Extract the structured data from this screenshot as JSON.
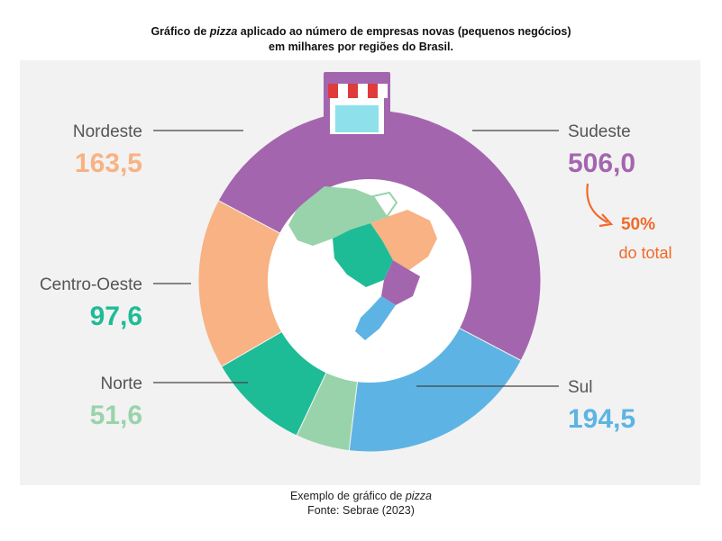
{
  "title": {
    "part1": "Gráfico de ",
    "italic": "pizza",
    "part2": " aplicado ao número de empresas novas (pequenos negócios)",
    "line2": "em milhares por regiões do Brasil."
  },
  "caption": {
    "part1": "Exemplo de gráfico de ",
    "italic": "pizza",
    "line2": "Fonte: Sebrae (2023)"
  },
  "annotation": {
    "percent": "50%",
    "text": "do total"
  },
  "colors": {
    "sudeste": "#a366ae",
    "sul": "#5db4e4",
    "norte": "#99d3ab",
    "centro_oeste": "#1ebc96",
    "nordeste": "#f8b283",
    "annotation": "#f06a2a",
    "label": "#555555",
    "panel": "#f2f2f2"
  },
  "icons": [
    "storefront-icon",
    "brazil-map-icon",
    "curved-arrow-icon"
  ],
  "chart_data": {
    "type": "pie",
    "variant": "donut",
    "unit": "milhares",
    "slices": [
      {
        "label": "Sudeste",
        "value": 506.0,
        "value_text": "506,0",
        "color": "#a366ae"
      },
      {
        "label": "Sul",
        "value": 194.5,
        "value_text": "194,5",
        "color": "#5db4e4"
      },
      {
        "label": "Norte",
        "value": 51.6,
        "value_text": "51,6",
        "color": "#99d3ab"
      },
      {
        "label": "Centro-Oeste",
        "value": 97.6,
        "value_text": "97,6",
        "color": "#1ebc96"
      },
      {
        "label": "Nordeste",
        "value": 163.5,
        "value_text": "163,5",
        "color": "#f8b283"
      }
    ]
  }
}
